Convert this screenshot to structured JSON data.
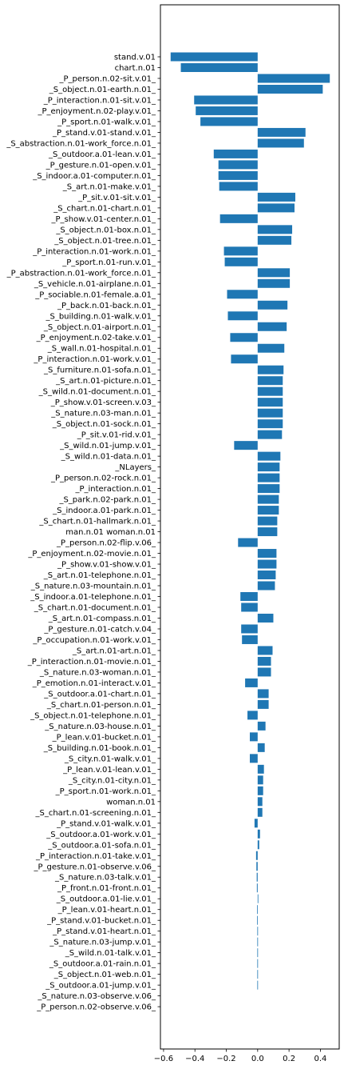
{
  "chart_data": {
    "type": "bar",
    "orientation": "horizontal",
    "title": "",
    "xlabel": "",
    "ylabel": "",
    "xlim": [
      -0.62,
      0.52
    ],
    "xticks": [
      -0.6,
      -0.4,
      -0.2,
      0.0,
      0.2,
      0.4
    ],
    "xtick_labels": [
      "−0.6",
      "−0.4",
      "−0.2",
      "0.0",
      "0.2",
      "0.4"
    ],
    "grid": false,
    "color": "#1f77b4",
    "categories": [
      "stand.v.01",
      "chart.n.01",
      "_P_person.n.02-sit.v.01_",
      "_S_object.n.01-earth.n.01_",
      "_P_interaction.n.01-sit.v.01_",
      "_P_enjoyment.n.02-play.v.01_",
      "_P_sport.n.01-walk.v.01_",
      "_P_stand.v.01-stand.v.01_",
      "_S_abstraction.n.01-work_force.n.01_",
      "_S_outdoor.a.01-lean.v.01_",
      "_P_gesture.n.01-open.v.01_",
      "_S_indoor.a.01-computer.n.01_",
      "_S_art.n.01-make.v.01_",
      "_P_sit.v.01-sit.v.01_",
      "_S_chart.n.01-chart.n.01_",
      "_P_show.v.01-center.n.01_",
      "_S_object.n.01-box.n.01_",
      "_S_object.n.01-tree.n.01_",
      "_P_interaction.n.01-work.n.01_",
      "_P_sport.n.01-run.v.01_",
      "_P_abstraction.n.01-work_force.n.01_",
      "_S_vehicle.n.01-airplane.n.01_",
      "_P_sociable.n.01-female.a.01_",
      "_P_back.n.01-back.n.01_",
      "_S_building.n.01-walk.v.01_",
      "_S_object.n.01-airport.n.01_",
      "_P_enjoyment.n.02-take.v.01_",
      "_S_wall.n.01-hospital.n.01_",
      "_P_interaction.n.01-work.v.01_",
      "_S_furniture.n.01-sofa.n.01_",
      "_S_art.n.01-picture.n.01_",
      "_S_wild.n.01-document.n.01_",
      "_P_show.v.01-screen.v.03_",
      "_S_nature.n.03-man.n.01_",
      "_S_object.n.01-sock.n.01_",
      "_P_sit.v.01-rid.v.01_",
      "_S_wild.n.01-jump.v.01_",
      "_S_wild.n.01-data.n.01_",
      "_NLayers_",
      "_P_person.n.02-rock.n.01_",
      "_P_interaction.n.01_",
      "_S_park.n.02-park.n.01_",
      "_S_indoor.a.01-park.n.01_",
      "_S_chart.n.01-hallmark.n.01_",
      "man.n.01 woman.n.01",
      "_P_person.n.02-flip.v.06_",
      "_P_enjoyment.n.02-movie.n.01_",
      "_P_show.v.01-show.v.01_",
      "_S_art.n.01-telephone.n.01_",
      "_S_nature.n.03-mountain.n.01_",
      "_S_indoor.a.01-telephone.n.01_",
      "_S_chart.n.01-document.n.01_",
      "_S_art.n.01-compass.n.01_",
      "_P_gesture.n.01-catch.v.04_",
      "_P_occupation.n.01-work.v.01_",
      "_S_art.n.01-art.n.01_",
      "_P_interaction.n.01-movie.n.01_",
      "_S_nature.n.03-woman.n.01_",
      "_P_emotion.n.01-interact.v.01_",
      "_S_outdoor.a.01-chart.n.01_",
      "_S_chart.n.01-person.n.01_",
      "_S_object.n.01-telephone.n.01_",
      "_S_nature.n.03-house.n.01_",
      "_P_lean.v.01-bucket.n.01_",
      "_S_building.n.01-book.n.01_",
      "_S_city.n.01-walk.v.01_",
      "_P_lean.v.01-lean.v.01_",
      "_S_city.n.01-city.n.01_",
      "_P_sport.n.01-work.n.01_",
      "woman.n.01",
      "_S_chart.n.01-screening.n.01_",
      "_P_stand.v.01-walk.v.01_",
      "_S_outdoor.a.01-work.v.01_",
      "_S_outdoor.a.01-sofa.n.01_",
      "_P_interaction.n.01-take.v.01_",
      "_P_gesture.n.01-observe.v.06_",
      "_S_nature.n.03-talk.v.01_",
      "_P_front.n.01-front.n.01_",
      "_S_outdoor.a.01-lie.v.01_",
      "_P_lean.v.01-heart.n.01_",
      "_P_stand.v.01-bucket.n.01_",
      "_P_stand.v.01-heart.n.01_",
      "_S_nature.n.03-jump.v.01_",
      "_S_wild.n.01-talk.v.01_",
      "_S_outdoor.a.01-rain.n.01_",
      "_S_object.n.01-web.n.01_",
      "_S_outdoor.a.01-jump.v.01_",
      "_S_nature.n.03-observe.v.06_",
      "_P_person.n.02-observe.v.06_"
    ],
    "values": [
      -0.555,
      -0.49,
      0.46,
      0.415,
      -0.405,
      -0.395,
      -0.365,
      0.305,
      0.295,
      -0.28,
      -0.25,
      -0.25,
      -0.245,
      0.24,
      0.235,
      -0.24,
      0.22,
      0.215,
      -0.215,
      -0.21,
      0.205,
      0.205,
      -0.195,
      0.19,
      -0.19,
      0.185,
      -0.175,
      0.17,
      -0.17,
      0.165,
      0.16,
      0.16,
      0.16,
      0.16,
      0.16,
      0.155,
      -0.15,
      0.145,
      0.14,
      0.14,
      0.14,
      0.135,
      0.135,
      0.125,
      0.125,
      -0.125,
      0.12,
      0.12,
      0.115,
      0.11,
      -0.11,
      -0.105,
      0.1,
      -0.105,
      -0.1,
      0.095,
      0.085,
      0.085,
      -0.08,
      0.07,
      0.07,
      -0.065,
      0.05,
      -0.05,
      0.045,
      -0.05,
      0.04,
      0.035,
      0.035,
      0.03,
      0.03,
      -0.02,
      0.015,
      0.01,
      -0.01,
      -0.008,
      -0.006,
      -0.005,
      0.003,
      -0.003,
      -0.003,
      -0.002,
      -0.002,
      -0.002,
      -0.002,
      -0.002,
      -0.002,
      0.0,
      0.0
    ]
  }
}
